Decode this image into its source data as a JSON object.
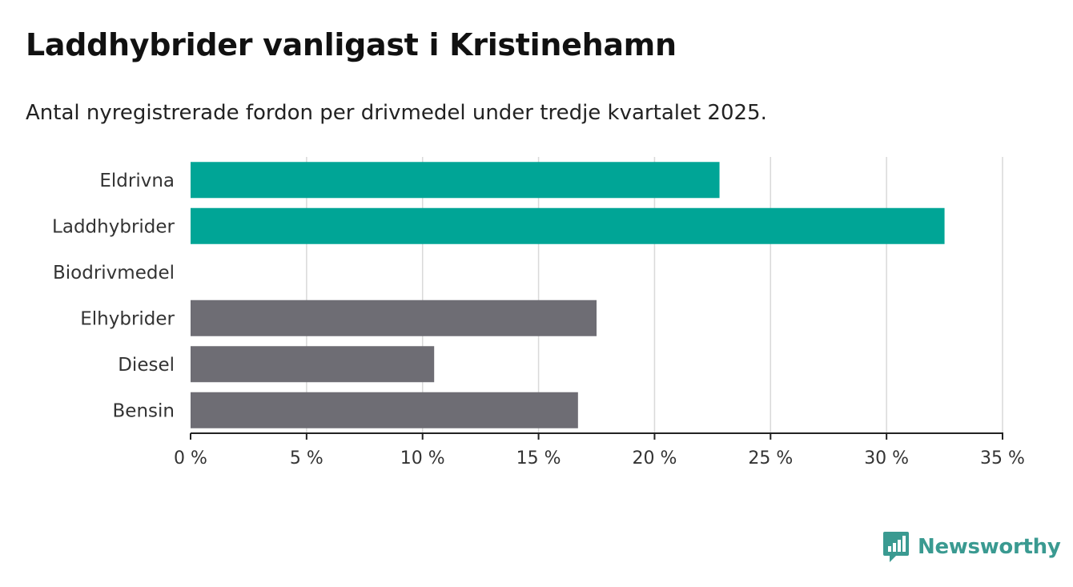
{
  "header": {
    "title": "Laddhybrider vanligast i Kristinehamn",
    "subtitle": "Antal nyregistrerade fordon per drivmedel under tredje kvartalet 2025."
  },
  "brand": {
    "name": "Newsworthy",
    "color": "#3a9a91",
    "icon": "bar-chart-speech-icon"
  },
  "colors": {
    "highlight": "#00a596",
    "neutral": "#6e6d74",
    "grid": "#d9d9d9",
    "axis": "#222222"
  },
  "chart_data": {
    "type": "bar",
    "orientation": "horizontal",
    "title": "Laddhybrider vanligast i Kristinehamn",
    "subtitle": "Antal nyregistrerade fordon per drivmedel under tredje kvartalet 2025.",
    "xlabel": "",
    "ylabel": "",
    "xlim": [
      0,
      35
    ],
    "ticks": [
      0,
      5,
      10,
      15,
      20,
      25,
      30,
      35
    ],
    "tick_labels": [
      "0 %",
      "5 %",
      "10 %",
      "15 %",
      "20 %",
      "25 %",
      "30 %",
      "35 %"
    ],
    "grid": true,
    "categories": [
      "Eldrivna",
      "Laddhybrider",
      "Biodrivmedel",
      "Elhybrider",
      "Diesel",
      "Bensin"
    ],
    "values": [
      22.8,
      32.5,
      0,
      17.5,
      10.5,
      16.7
    ],
    "highlighted": [
      true,
      true,
      false,
      false,
      false,
      false
    ]
  }
}
